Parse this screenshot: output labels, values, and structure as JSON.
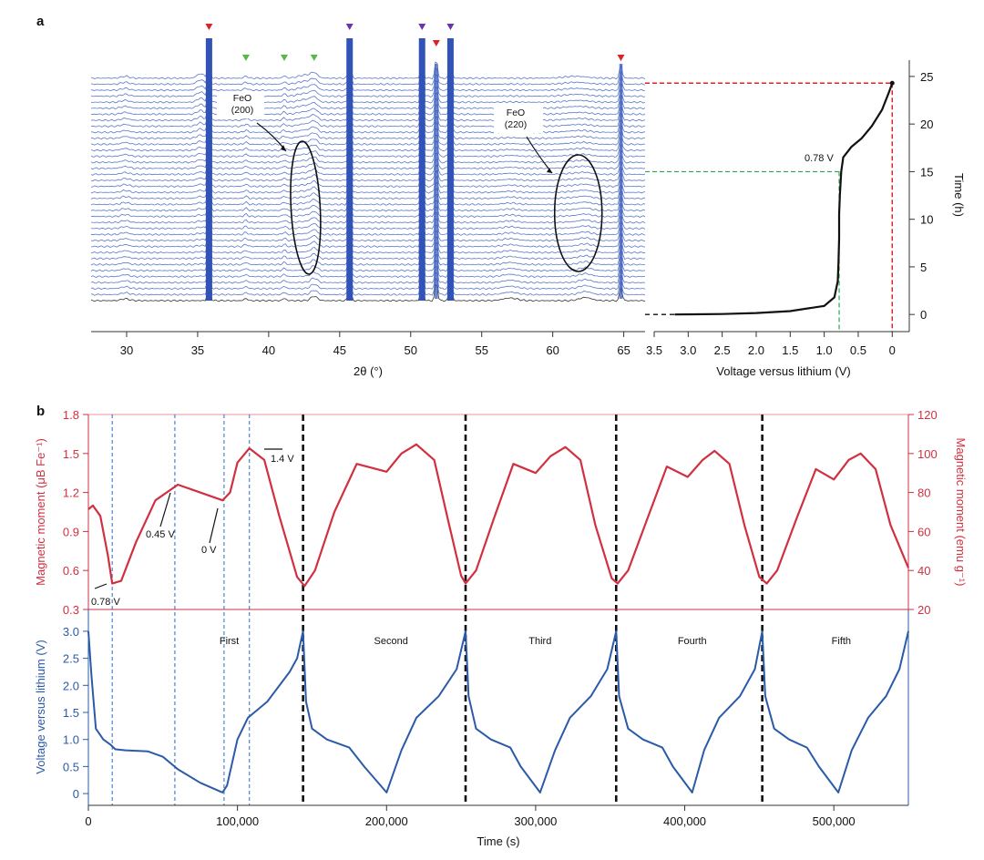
{
  "panel_labels": {
    "a": "a",
    "b": "b"
  },
  "colors": {
    "xrd_trace": "#5a78c8",
    "xrd_bottom": "#333333",
    "peak_fill": "#3153b8",
    "voltage_line": "#2b5aa8",
    "moment_line": "#d03040",
    "red_axis": "#d03040",
    "blue_axis": "#2b5aa8",
    "marker_red": "#d8252b",
    "marker_green": "#58b848",
    "marker_purple": "#6a35a8",
    "guide_red": "#d8252b",
    "guide_green": "#2aa84a",
    "guide_blue": "#3a78d0"
  },
  "chart_data": [
    {
      "type": "line",
      "id": "xrd_waterfall",
      "title": "",
      "xlabel": "2θ (°)",
      "xlim": [
        27.5,
        66.5
      ],
      "xticks": [
        30,
        35,
        40,
        45,
        50,
        55,
        60,
        65
      ],
      "n_traces": 38,
      "peaks": [
        {
          "position": 35.8,
          "marker": "red",
          "label": ""
        },
        {
          "position": 38.4,
          "marker": "green",
          "label": ""
        },
        {
          "position": 41.1,
          "marker": "green",
          "label": ""
        },
        {
          "position": 43.2,
          "marker": "green",
          "label": ""
        },
        {
          "position": 45.7,
          "marker": "purple",
          "label": ""
        },
        {
          "position": 50.8,
          "marker": "purple",
          "label": ""
        },
        {
          "position": 51.8,
          "marker": "red",
          "label": ""
        },
        {
          "position": 52.8,
          "marker": "purple",
          "label": ""
        },
        {
          "position": 64.8,
          "marker": "red",
          "label": ""
        }
      ],
      "annotations": [
        {
          "text_line1": "FeO",
          "text_line2": "(200)",
          "target_2theta": 42.6
        },
        {
          "text_line1": "FeO",
          "text_line2": "(220)",
          "target_2theta": 61.8
        }
      ]
    },
    {
      "type": "line",
      "id": "voltage_time",
      "xlabel": "Voltage versus lithium (V)",
      "ylabel": "Time (h)",
      "xlim": [
        3.5,
        -0.05
      ],
      "ylim": [
        -1.8,
        27
      ],
      "xticks": [
        3.5,
        3.0,
        2.5,
        2.0,
        1.5,
        1.0,
        0.5,
        0
      ],
      "xtick_labels": [
        "3.5",
        "3.0",
        "2.5",
        "2.0",
        "1.5",
        "1.0",
        "0.5",
        "0"
      ],
      "yticks": [
        0,
        5,
        10,
        15,
        20,
        25
      ],
      "annotation": "0.78 V",
      "guides": [
        {
          "voltage": 0,
          "time": 24.3,
          "color": "red"
        },
        {
          "voltage": 0.78,
          "time": 15,
          "color": "green"
        }
      ],
      "series": [
        {
          "name": "voltage",
          "points": [
            [
              3.2,
              0
            ],
            [
              2.5,
              0.05
            ],
            [
              2.0,
              0.15
            ],
            [
              1.5,
              0.35
            ],
            [
              1.0,
              0.9
            ],
            [
              0.85,
              1.8
            ],
            [
              0.8,
              3.5
            ],
            [
              0.79,
              5.5
            ],
            [
              0.78,
              8
            ],
            [
              0.78,
              10.5
            ],
            [
              0.77,
              12.5
            ],
            [
              0.75,
              15
            ],
            [
              0.72,
              16.5
            ],
            [
              0.6,
              17.6
            ],
            [
              0.45,
              18.5
            ],
            [
              0.3,
              19.8
            ],
            [
              0.15,
              21.5
            ],
            [
              0.05,
              23.3
            ],
            [
              0.0,
              24.3
            ]
          ]
        }
      ]
    },
    {
      "type": "line",
      "id": "magnetic_moment",
      "xlim": [
        0,
        550000
      ],
      "ylim": [
        0.3,
        1.8
      ],
      "yticks": [
        0.3,
        0.6,
        0.9,
        1.2,
        1.5,
        1.8
      ],
      "ytick_labels": [
        "0.3",
        "0.6",
        "0.9",
        "1.2",
        "1.5",
        "1.8"
      ],
      "ylabel_left": "Magnetic moment (μB Fe⁻¹)",
      "ylabel_right": "Magnetic moment (emu g⁻¹)",
      "y2lim": [
        20,
        120
      ],
      "y2ticks": [
        20,
        40,
        60,
        80,
        100,
        120
      ],
      "annotations": [
        {
          "text": "0.78 V",
          "x": 16000,
          "y": 0.5
        },
        {
          "text": "0.45 V",
          "x": 58000,
          "y": 1.25
        },
        {
          "text": "0 V",
          "x": 90000,
          "y": 1.13
        },
        {
          "text": "1.4 V",
          "x": 118000,
          "y": 1.53
        }
      ],
      "series": [
        {
          "name": "magnetic moment",
          "points": [
            [
              0,
              1.07
            ],
            [
              3000,
              1.1
            ],
            [
              8000,
              1.02
            ],
            [
              13000,
              0.72
            ],
            [
              16000,
              0.5
            ],
            [
              22000,
              0.52
            ],
            [
              32000,
              0.82
            ],
            [
              45000,
              1.14
            ],
            [
              60000,
              1.26
            ],
            [
              75000,
              1.2
            ],
            [
              90000,
              1.14
            ],
            [
              95000,
              1.2
            ],
            [
              100000,
              1.43
            ],
            [
              108000,
              1.54
            ],
            [
              118000,
              1.45
            ],
            [
              128000,
              1.02
            ],
            [
              140000,
              0.55
            ],
            [
              145000,
              0.48
            ],
            [
              152000,
              0.6
            ],
            [
              165000,
              1.05
            ],
            [
              180000,
              1.42
            ],
            [
              200000,
              1.36
            ],
            [
              210000,
              1.5
            ],
            [
              220000,
              1.57
            ],
            [
              232000,
              1.45
            ],
            [
              242000,
              0.95
            ],
            [
              250000,
              0.56
            ],
            [
              253000,
              0.5
            ],
            [
              260000,
              0.6
            ],
            [
              272000,
              1.0
            ],
            [
              285000,
              1.42
            ],
            [
              300000,
              1.35
            ],
            [
              310000,
              1.48
            ],
            [
              320000,
              1.55
            ],
            [
              330000,
              1.45
            ],
            [
              340000,
              0.95
            ],
            [
              351000,
              0.54
            ],
            [
              355000,
              0.5
            ],
            [
              362000,
              0.6
            ],
            [
              375000,
              1.0
            ],
            [
              388000,
              1.4
            ],
            [
              402000,
              1.32
            ],
            [
              412000,
              1.45
            ],
            [
              420000,
              1.52
            ],
            [
              430000,
              1.42
            ],
            [
              440000,
              0.95
            ],
            [
              450000,
              0.55
            ],
            [
              455000,
              0.5
            ],
            [
              462000,
              0.6
            ],
            [
              475000,
              1.0
            ],
            [
              488000,
              1.38
            ],
            [
              500000,
              1.3
            ],
            [
              510000,
              1.45
            ],
            [
              518000,
              1.5
            ],
            [
              528000,
              1.38
            ],
            [
              538000,
              0.95
            ],
            [
              550000,
              0.62
            ]
          ]
        }
      ]
    },
    {
      "type": "line",
      "id": "voltage_cycles",
      "xlabel": "Time (s)",
      "ylabel": "Voltage versus lithium (V)",
      "xlim": [
        0,
        550000
      ],
      "ylim": [
        -0.15,
        3.15
      ],
      "xticks": [
        0,
        100000,
        200000,
        300000,
        400000,
        500000
      ],
      "xtick_labels": [
        "0",
        "100,000",
        "200,000",
        "300,000",
        "400,000",
        "500,000"
      ],
      "yticks": [
        0,
        0.5,
        1.0,
        1.5,
        2.0,
        2.5,
        3.0
      ],
      "ytick_labels": [
        "0",
        "0.5",
        "1.0",
        "1.5",
        "2.0",
        "2.5",
        "3.0"
      ],
      "cycle_labels": [
        {
          "text": "First",
          "x": 70000
        },
        {
          "text": "Second",
          "x": 203000
        },
        {
          "text": "Third",
          "x": 303000
        },
        {
          "text": "Fourth",
          "x": 405000
        },
        {
          "text": "Fifth",
          "x": 505000
        }
      ],
      "cycle_boundaries": [
        144000,
        253000,
        354000,
        452000
      ],
      "blue_guides": [
        16000,
        58000,
        91000,
        108000
      ],
      "series": [
        {
          "name": "voltage",
          "points": [
            [
              0,
              3.0
            ],
            [
              2000,
              2.2
            ],
            [
              5000,
              1.2
            ],
            [
              10000,
              1.0
            ],
            [
              15000,
              0.9
            ],
            [
              18000,
              0.82
            ],
            [
              25000,
              0.8
            ],
            [
              40000,
              0.78
            ],
            [
              50000,
              0.68
            ],
            [
              60000,
              0.45
            ],
            [
              75000,
              0.2
            ],
            [
              90000,
              0.02
            ],
            [
              93000,
              0.15
            ],
            [
              100000,
              1.0
            ],
            [
              107000,
              1.4
            ],
            [
              120000,
              1.7
            ],
            [
              135000,
              2.25
            ],
            [
              140000,
              2.5
            ],
            [
              144000,
              3.0
            ],
            [
              146000,
              1.7
            ],
            [
              150000,
              1.2
            ],
            [
              160000,
              1.0
            ],
            [
              175000,
              0.85
            ],
            [
              185000,
              0.5
            ],
            [
              200000,
              0.02
            ],
            [
              210000,
              0.8
            ],
            [
              220000,
              1.4
            ],
            [
              235000,
              1.8
            ],
            [
              247000,
              2.3
            ],
            [
              253000,
              3.0
            ],
            [
              255000,
              1.8
            ],
            [
              260000,
              1.2
            ],
            [
              270000,
              1.0
            ],
            [
              283000,
              0.85
            ],
            [
              290000,
              0.5
            ],
            [
              303000,
              0.02
            ],
            [
              313000,
              0.8
            ],
            [
              323000,
              1.4
            ],
            [
              337000,
              1.8
            ],
            [
              348000,
              2.3
            ],
            [
              354000,
              3.0
            ],
            [
              356000,
              1.8
            ],
            [
              362000,
              1.2
            ],
            [
              372000,
              1.0
            ],
            [
              385000,
              0.85
            ],
            [
              392000,
              0.5
            ],
            [
              405000,
              0.02
            ],
            [
              413000,
              0.8
            ],
            [
              423000,
              1.4
            ],
            [
              437000,
              1.8
            ],
            [
              447000,
              2.3
            ],
            [
              452000,
              3.0
            ],
            [
              454000,
              1.8
            ],
            [
              460000,
              1.2
            ],
            [
              470000,
              1.0
            ],
            [
              482000,
              0.85
            ],
            [
              490000,
              0.5
            ],
            [
              503000,
              0.02
            ],
            [
              512000,
              0.8
            ],
            [
              523000,
              1.4
            ],
            [
              535000,
              1.8
            ],
            [
              544000,
              2.3
            ],
            [
              550000,
              3.0
            ]
          ]
        }
      ]
    }
  ]
}
